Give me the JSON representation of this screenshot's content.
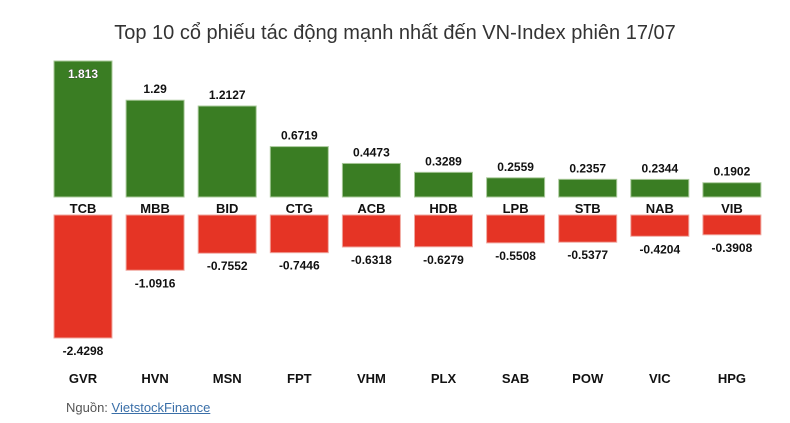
{
  "chart_data": {
    "type": "bar",
    "title": "Top 10 cổ phiếu tác động mạnh nhất đến VN-Index phiên 17/07",
    "positive": {
      "categories": [
        "TCB",
        "MBB",
        "BID",
        "CTG",
        "ACB",
        "HDB",
        "LPB",
        "STB",
        "NAB",
        "VIB"
      ],
      "values": [
        1.813,
        1.29,
        1.2127,
        0.6719,
        0.4473,
        0.3289,
        0.2559,
        0.2357,
        0.2344,
        0.1902
      ],
      "color": "#3a7d23"
    },
    "negative": {
      "categories": [
        "GVR",
        "HVN",
        "MSN",
        "FPT",
        "VHM",
        "PLX",
        "SAB",
        "POW",
        "VIC",
        "HPG"
      ],
      "values": [
        -2.4298,
        -1.0916,
        -0.7552,
        -0.7446,
        -0.6318,
        -0.6279,
        -0.5508,
        -0.5377,
        -0.4204,
        -0.3908
      ],
      "color": "#e53425"
    }
  },
  "source": {
    "label": "Nguồn:",
    "link": "VietstockFinance"
  }
}
